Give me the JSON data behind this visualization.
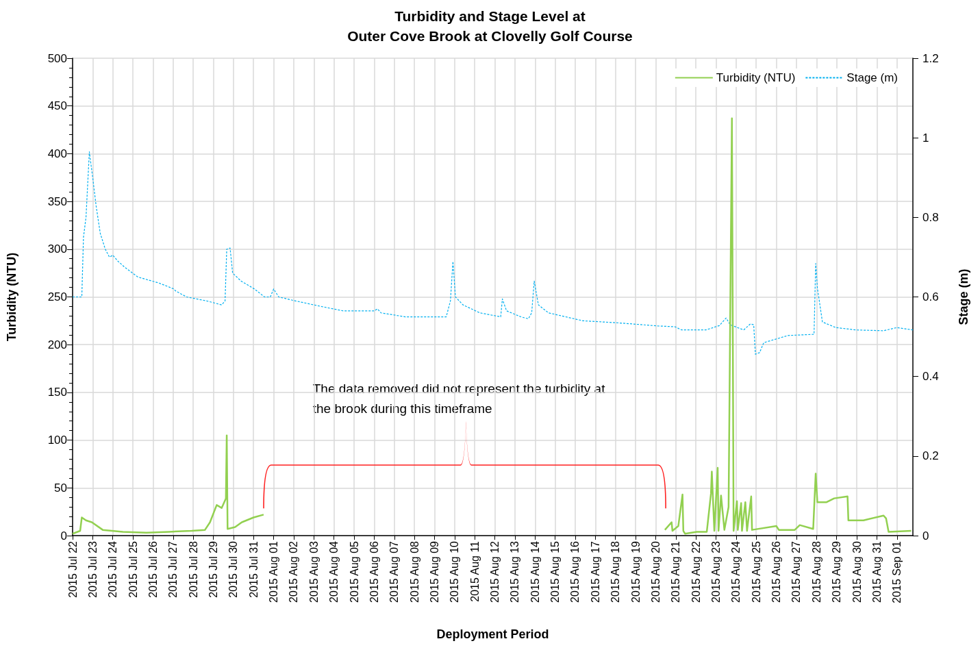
{
  "chart_data": {
    "type": "line",
    "title": "Turbidity and Stage Level at\nOuter Cove Brook at Clovelly Golf Course",
    "xlabel": "Deployment Period",
    "ylabel": "Turbidity (NTU)",
    "y2label": "Stage (m)",
    "annotations": [
      "The data removed did not represent the turbidity at\nthe brook during this timeframe"
    ],
    "series": [
      {
        "name": "Turbidity (NTU)",
        "color": "#92d050",
        "line_style": "solid",
        "x": [
          "2015-07-22T00:00",
          "2015-07-22T09:00",
          "2015-07-22T11:00",
          "2015-07-22T16:00",
          "2015-07-22T23:00",
          "2015-07-23T12:00",
          "2015-07-24T12:00",
          "2015-07-25T16:00",
          "2015-07-26T19:00",
          "2015-07-27T22:00",
          "2015-07-28T14:00",
          "2015-07-28T20:00",
          "2015-07-29T04:00",
          "2015-07-29T10:00",
          "2015-07-29T15:00",
          "2015-07-29T16:00",
          "2015-07-29T17:00",
          "2015-07-30T02:00",
          "2015-07-30T10:00",
          "2015-07-31T00:00",
          "2015-07-31T12:00",
          "2015-08-10T00:00",
          "2015-08-20T11:00",
          "2015-08-20T19:00",
          "2015-08-20T20:00",
          "2015-08-21T03:00",
          "2015-08-21T08:00",
          "2015-08-21T09:00",
          "2015-08-21T11:00",
          "2015-08-22T01:00",
          "2015-08-22T13:00",
          "2015-08-22T18:00",
          "2015-08-22T19:00",
          "2015-08-22T22:00",
          "2015-08-23T02:00",
          "2015-08-23T03:00",
          "2015-08-23T06:00",
          "2015-08-23T10:00",
          "2015-08-23T15:00",
          "2015-08-23T19:00",
          "2015-08-23T21:00",
          "2015-08-24T01:00",
          "2015-08-24T02:00",
          "2015-08-24T06:00",
          "2015-08-24T07:00",
          "2015-08-24T11:00",
          "2015-08-24T13:00",
          "2015-08-24T18:00",
          "2015-08-24T19:00",
          "2015-08-26T00:00",
          "2015-08-26T03:00",
          "2015-08-26T22:00",
          "2015-08-27T04:00",
          "2015-08-27T20:00",
          "2015-08-27T23:00",
          "2015-08-28T01:00",
          "2015-08-28T12:00",
          "2015-08-28T21:00",
          "2015-08-29T13:00",
          "2015-08-29T14:00",
          "2015-08-30T08:00",
          "2015-08-31T08:00",
          "2015-08-31T11:00",
          "2015-08-31T14:00",
          "2015-09-01T17:00"
        ],
        "values": [
          2,
          5,
          19,
          16,
          14,
          6,
          4,
          3,
          4,
          5,
          6,
          14,
          32,
          29,
          39,
          105,
          7,
          9,
          14,
          19,
          22,
          null,
          6,
          14,
          5,
          10,
          43,
          5,
          2,
          4,
          4,
          44,
          67,
          5,
          71,
          5,
          42,
          6,
          30,
          437,
          5,
          36,
          6,
          34,
          5,
          35,
          5,
          41,
          6,
          10,
          6,
          6,
          11,
          7,
          65,
          35,
          35,
          39,
          41,
          16,
          16,
          21,
          18,
          4,
          5
        ]
      },
      {
        "name": "Stage (m)",
        "color": "#00b0f0",
        "line_style": "dashed",
        "axis": "y2",
        "x": [
          "2015-07-22T00:00",
          "2015-07-22T11:00",
          "2015-07-22T13:00",
          "2015-07-22T16:00",
          "2015-07-22T20:00",
          "2015-07-23T00:00",
          "2015-07-23T04:00",
          "2015-07-23T09:00",
          "2015-07-23T15:00",
          "2015-07-23T20:00",
          "2015-07-24T00:00",
          "2015-07-24T06:00",
          "2015-07-24T14:00",
          "2015-07-25T06:00",
          "2015-07-26T07:00",
          "2015-07-27T01:00",
          "2015-07-27T03:00",
          "2015-07-27T16:00",
          "2015-07-28T16:00",
          "2015-07-29T10:00",
          "2015-07-29T14:00",
          "2015-07-29T16:00",
          "2015-07-29T20:00",
          "2015-07-29T23:00",
          "2015-07-30T09:00",
          "2015-07-31T01:00",
          "2015-07-31T13:00",
          "2015-07-31T20:00",
          "2015-08-01T00:00",
          "2015-08-01T06:00",
          "2015-08-02T02:00",
          "2015-08-03T11:00",
          "2015-08-04T11:00",
          "2015-08-06T00:00",
          "2015-08-06T04:00",
          "2015-08-06T08:00",
          "2015-08-07T13:00",
          "2015-08-09T14:00",
          "2015-08-09T19:00",
          "2015-08-09T22:00",
          "2015-08-10T01:00",
          "2015-08-10T10:00",
          "2015-08-11T06:00",
          "2015-08-12T07:00",
          "2015-08-12T09:00",
          "2015-08-12T14:00",
          "2015-08-13T07:00",
          "2015-08-13T16:00",
          "2015-08-13T20:00",
          "2015-08-13T23:00",
          "2015-08-14T04:00",
          "2015-08-14T16:00",
          "2015-08-16T09:00",
          "2015-08-18T02:00",
          "2015-08-20T03:00",
          "2015-08-20T23:00",
          "2015-08-21T07:00",
          "2015-08-22T12:00",
          "2015-08-23T04:00",
          "2015-08-23T12:00",
          "2015-08-23T17:00",
          "2015-08-24T09:00",
          "2015-08-24T17:00",
          "2015-08-24T21:00",
          "2015-08-24T23:00",
          "2015-08-25T04:00",
          "2015-08-25T09:00",
          "2015-08-26T14:00",
          "2015-08-27T21:00",
          "2015-08-27T23:00",
          "2015-08-28T01:00",
          "2015-08-28T07:00",
          "2015-08-28T23:00",
          "2015-08-29T23:00",
          "2015-08-31T08:00",
          "2015-09-01T00:00",
          "2015-09-01T19:00"
        ],
        "values": [
          0.6,
          0.6,
          0.75,
          0.8,
          0.965,
          0.9,
          0.83,
          0.76,
          0.72,
          0.7,
          0.705,
          0.69,
          0.675,
          0.65,
          0.635,
          0.62,
          0.615,
          0.6,
          0.59,
          0.58,
          0.59,
          0.72,
          0.723,
          0.66,
          0.64,
          0.62,
          0.6,
          0.6,
          0.62,
          0.6,
          0.59,
          0.575,
          0.565,
          0.565,
          0.57,
          0.56,
          0.55,
          0.55,
          0.59,
          0.689,
          0.6,
          0.58,
          0.56,
          0.55,
          0.595,
          0.565,
          0.55,
          0.545,
          0.56,
          0.64,
          0.58,
          0.56,
          0.54,
          0.535,
          0.527,
          0.525,
          0.517,
          0.517,
          0.528,
          0.547,
          0.53,
          0.517,
          0.532,
          0.53,
          0.456,
          0.46,
          0.485,
          0.503,
          0.506,
          0.684,
          0.623,
          0.537,
          0.523,
          0.517,
          0.515,
          0.523,
          0.517
        ]
      }
    ],
    "xlim": [
      "2015-07-22",
      "2015-09-01T19:00"
    ],
    "xticks": [
      {
        "value": "2015-07-22",
        "label": "2015 Jul 22"
      },
      {
        "value": "2015-07-23",
        "label": "2015 Jul 23"
      },
      {
        "value": "2015-07-24",
        "label": "2015 Jul 24"
      },
      {
        "value": "2015-07-25",
        "label": "2015 Jul 25"
      },
      {
        "value": "2015-07-26",
        "label": "2015 Jul 26"
      },
      {
        "value": "2015-07-27",
        "label": "2015 Jul 27"
      },
      {
        "value": "2015-07-28",
        "label": "2015 Jul 28"
      },
      {
        "value": "2015-07-29",
        "label": "2015 Jul 29"
      },
      {
        "value": "2015-07-30",
        "label": "2015 Jul 30"
      },
      {
        "value": "2015-07-31",
        "label": "2015 Jul 31"
      },
      {
        "value": "2015-08-01",
        "label": "2015 Aug 01"
      },
      {
        "value": "2015-08-02",
        "label": "2015 Aug 02"
      },
      {
        "value": "2015-08-03",
        "label": "2015 Aug 03"
      },
      {
        "value": "2015-08-04",
        "label": "2015 Aug 04"
      },
      {
        "value": "2015-08-05",
        "label": "2015 Aug 05"
      },
      {
        "value": "2015-08-06",
        "label": "2015 Aug 06"
      },
      {
        "value": "2015-08-07",
        "label": "2015 Aug 07"
      },
      {
        "value": "2015-08-08",
        "label": "2015 Aug 08"
      },
      {
        "value": "2015-08-09",
        "label": "2015 Aug 09"
      },
      {
        "value": "2015-08-10",
        "label": "2015 Aug 10"
      },
      {
        "value": "2015-08-11",
        "label": "2015 Aug 11"
      },
      {
        "value": "2015-08-12",
        "label": "2015 Aug 12"
      },
      {
        "value": "2015-08-13",
        "label": "2015 Aug 13"
      },
      {
        "value": "2015-08-14",
        "label": "2015 Aug 14"
      },
      {
        "value": "2015-08-15",
        "label": "2015 Aug 15"
      },
      {
        "value": "2015-08-16",
        "label": "2015 Aug 16"
      },
      {
        "value": "2015-08-17",
        "label": "2015 Aug 17"
      },
      {
        "value": "2015-08-18",
        "label": "2015 Aug 18"
      },
      {
        "value": "2015-08-19",
        "label": "2015 Aug 19"
      },
      {
        "value": "2015-08-20",
        "label": "2015 Aug 20"
      },
      {
        "value": "2015-08-21",
        "label": "2015 Aug 21"
      },
      {
        "value": "2015-08-22",
        "label": "2015 Aug 22"
      },
      {
        "value": "2015-08-23",
        "label": "2015 Aug 23"
      },
      {
        "value": "2015-08-24",
        "label": "2015 Aug 24"
      },
      {
        "value": "2015-08-25",
        "label": "2015 Aug 25"
      },
      {
        "value": "2015-08-26",
        "label": "2015 Aug 26"
      },
      {
        "value": "2015-08-27",
        "label": "2015 Aug 27"
      },
      {
        "value": "2015-08-28",
        "label": "2015 Aug 28"
      },
      {
        "value": "2015-08-29",
        "label": "2015 Aug 29"
      },
      {
        "value": "2015-08-30",
        "label": "2015 Aug 30"
      },
      {
        "value": "2015-08-31",
        "label": "2015 Aug 31"
      },
      {
        "value": "2015-09-01",
        "label": "2015 Sep 01"
      }
    ],
    "ylim": [
      0,
      500
    ],
    "yticks": [
      0,
      50,
      100,
      150,
      200,
      250,
      300,
      350,
      400,
      450,
      500
    ],
    "y2lim": [
      0,
      1.2
    ],
    "y2ticks": [
      0,
      0.2,
      0.4,
      0.6,
      0.8,
      1,
      1.2
    ],
    "grid": true,
    "legend": "top right",
    "marker": "none"
  }
}
